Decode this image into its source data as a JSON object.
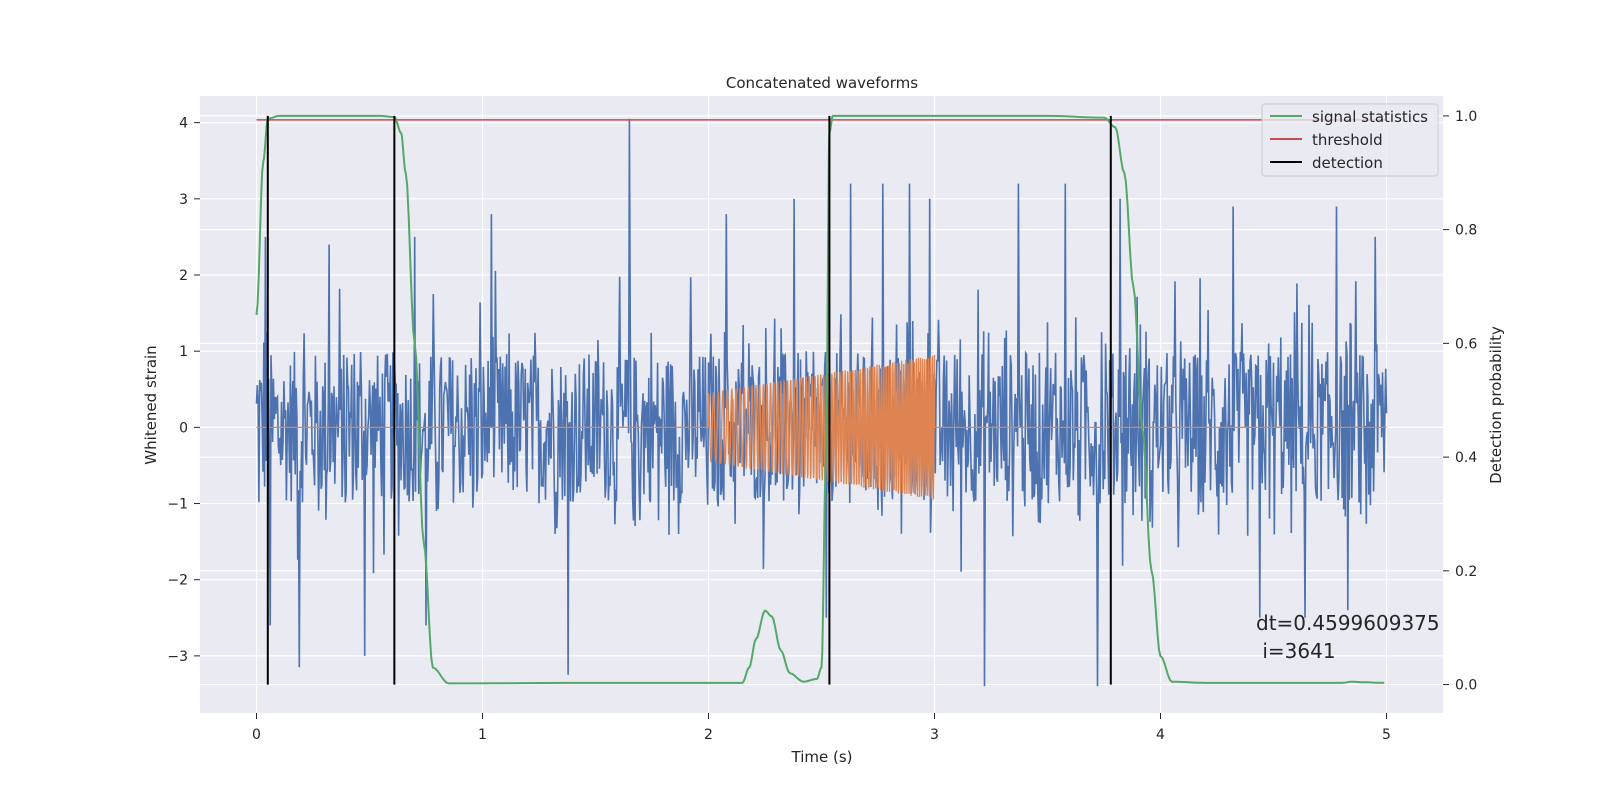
{
  "chart_data": {
    "type": "line",
    "title": "Concatenated waveforms",
    "xlabel": "Time (s)",
    "ylabel_left": "Whitened strain",
    "ylabel_right": "Detection probability",
    "xlim": [
      -0.25,
      5.25
    ],
    "ylim_left": [
      -3.75,
      4.35
    ],
    "ylim_right": [
      -0.05,
      1.035
    ],
    "x_ticks": [
      0,
      1,
      2,
      3,
      4,
      5
    ],
    "x_tick_labels": [
      "0",
      "1",
      "2",
      "3",
      "4",
      "5"
    ],
    "y_left_ticks": [
      -3,
      -2,
      -1,
      0,
      1,
      2,
      3,
      4
    ],
    "y_left_tick_labels": [
      "−3",
      "−2",
      "−1",
      "0",
      "1",
      "2",
      "3",
      "4"
    ],
    "y_right_ticks": [
      0.0,
      0.2,
      0.4,
      0.6,
      0.8,
      1.0
    ],
    "y_right_tick_labels": [
      "0.0",
      "0.2",
      "0.4",
      "0.6",
      "0.8",
      "1.0"
    ],
    "grid": true,
    "legend_position": "top-right",
    "legend": [
      {
        "label": "signal statistics",
        "color": "#55a868"
      },
      {
        "label": "threshold",
        "color": "#c44e52"
      },
      {
        "label": "detection",
        "color": "#000000"
      }
    ],
    "noise_series": {
      "axis": "left",
      "color": "#4c72b0",
      "x_range": [
        0,
        5
      ],
      "typical_amplitude": 1.0,
      "peaks": [
        {
          "x": 0.04,
          "y": 2.5
        },
        {
          "x": 0.06,
          "y": -2.6
        },
        {
          "x": 0.19,
          "y": -3.15
        },
        {
          "x": 0.32,
          "y": 2.4
        },
        {
          "x": 0.48,
          "y": -3.0
        },
        {
          "x": 0.7,
          "y": 2.5
        },
        {
          "x": 0.75,
          "y": -2.6
        },
        {
          "x": 1.04,
          "y": 2.8
        },
        {
          "x": 1.38,
          "y": -3.25
        },
        {
          "x": 1.65,
          "y": 4.05
        },
        {
          "x": 2.08,
          "y": 2.8
        },
        {
          "x": 2.38,
          "y": 3.0
        },
        {
          "x": 2.52,
          "y": -2.5
        },
        {
          "x": 2.63,
          "y": 3.2
        },
        {
          "x": 2.77,
          "y": 3.2
        },
        {
          "x": 2.89,
          "y": 3.2
        },
        {
          "x": 2.98,
          "y": 3.0
        },
        {
          "x": 3.37,
          "y": 3.2
        },
        {
          "x": 3.58,
          "y": 3.2
        },
        {
          "x": 3.22,
          "y": -3.4
        },
        {
          "x": 3.72,
          "y": -3.4
        },
        {
          "x": 3.82,
          "y": 3.0
        },
        {
          "x": 4.32,
          "y": 2.9
        },
        {
          "x": 4.44,
          "y": -2.5
        },
        {
          "x": 4.64,
          "y": -2.5
        },
        {
          "x": 4.78,
          "y": 2.9
        },
        {
          "x": 4.83,
          "y": -2.4
        },
        {
          "x": 4.95,
          "y": 2.5
        }
      ]
    },
    "template_series": {
      "axis": "left",
      "color": "#dd8452",
      "x_range": [
        0,
        5
      ],
      "chirp_x_range": [
        2.0,
        3.0
      ],
      "amplitude_start": 0.45,
      "amplitude_end": 0.95
    },
    "signal_statistics": {
      "axis": "right",
      "color": "#55a868",
      "x": [
        0.0,
        0.03,
        0.05,
        0.1,
        0.3,
        0.55,
        0.61,
        0.64,
        0.66,
        0.7,
        0.74,
        0.78,
        0.85,
        1.5,
        1.95,
        2.15,
        2.18,
        2.21,
        2.25,
        2.28,
        2.32,
        2.36,
        2.42,
        2.48,
        2.5,
        2.52,
        2.535,
        2.55,
        2.6,
        3.5,
        3.75,
        3.8,
        3.84,
        3.88,
        3.92,
        3.96,
        4.0,
        4.05,
        4.2,
        4.8,
        4.85,
        4.9,
        4.99
      ],
      "y": [
        0.65,
        0.92,
        0.995,
        1.0,
        1.0,
        1.0,
        0.998,
        0.97,
        0.9,
        0.6,
        0.25,
        0.03,
        0.002,
        0.003,
        0.003,
        0.003,
        0.03,
        0.08,
        0.13,
        0.12,
        0.06,
        0.02,
        0.005,
        0.01,
        0.03,
        0.4,
        0.97,
        1.0,
        1.0,
        1.0,
        0.997,
        0.98,
        0.9,
        0.7,
        0.45,
        0.2,
        0.05,
        0.005,
        0.003,
        0.003,
        0.005,
        0.004,
        0.003
      ]
    },
    "threshold": {
      "axis": "right",
      "color": "#c44e52",
      "value": 0.993,
      "x_range": [
        0,
        5
      ]
    },
    "detections": {
      "axis": "right",
      "color": "#000000",
      "x": [
        0.05,
        0.61,
        2.535,
        3.78
      ],
      "y_range": [
        0.0,
        1.0
      ]
    },
    "annotation": {
      "lines": [
        "dt=0.4599609375",
        " i=3641"
      ],
      "x": 4.5,
      "y_right": 0.1
    }
  },
  "colors": {
    "plot_background": "#eaeaf2",
    "grid": "#ffffff",
    "text": "#262626"
  }
}
